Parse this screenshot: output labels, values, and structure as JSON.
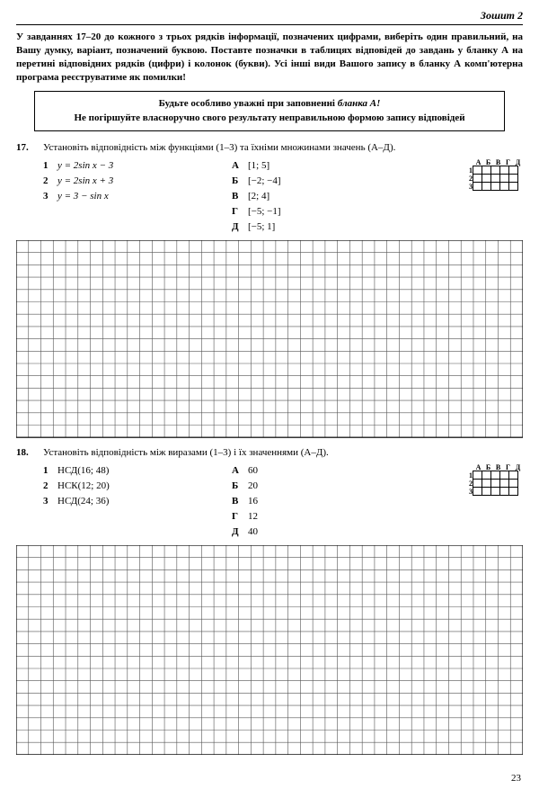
{
  "header": {
    "booklet": "Зошит 2"
  },
  "instructions": "У завданнях 17–20 до кожного з трьох рядків інформації, позначених цифрами, виберіть один правильний, на Вашу думку, варіант, позначений буквою. Поставте позначки в таблицях відповідей до завдань у бланку А на перетині відповідних рядків (цифри) і колонок (букви). Усі інші види Вашого запису в бланку А комп'ютерна програма реєструватиме як помилки!",
  "warning": {
    "line1_a": "Будьте особливо уважні при заповненні ",
    "line1_b": "бланка А!",
    "line2": "Не погіршуйте власноручно свого результату неправильною формою запису відповідей"
  },
  "answer_header": [
    "А",
    "Б",
    "В",
    "Г",
    "Д"
  ],
  "task17": {
    "num": "17.",
    "prompt": "Установіть відповідність між функціями (1–3) та їхніми множинами значень (А–Д).",
    "left": [
      {
        "n": "1",
        "txt": "y = 2sin x − 3"
      },
      {
        "n": "2",
        "txt": "y = 2sin x + 3"
      },
      {
        "n": "3",
        "txt": "y = 3 − sin x"
      }
    ],
    "right": [
      {
        "l": "А",
        "txt": "[1; 5]"
      },
      {
        "l": "Б",
        "txt": "[−2; −4]"
      },
      {
        "l": "В",
        "txt": "[2; 4]"
      },
      {
        "l": "Г",
        "txt": "[−5; −1]"
      },
      {
        "l": "Д",
        "txt": "[−5; 1]"
      }
    ],
    "grid": {
      "cols": 41,
      "rows": 16,
      "cell": 13.7,
      "stroke": "#555"
    }
  },
  "task18": {
    "num": "18.",
    "prompt": "Установіть відповідність між виразами (1–3) і їх значеннями (А–Д).",
    "left": [
      {
        "n": "1",
        "txt": "НСД(16; 48)"
      },
      {
        "n": "2",
        "txt": "НСК(12; 20)"
      },
      {
        "n": "3",
        "txt": "НСД(24; 36)"
      }
    ],
    "right": [
      {
        "l": "А",
        "txt": "60"
      },
      {
        "l": "Б",
        "txt": "20"
      },
      {
        "l": "В",
        "txt": "16"
      },
      {
        "l": "Г",
        "txt": "12"
      },
      {
        "l": "Д",
        "txt": "40"
      }
    ],
    "grid": {
      "cols": 41,
      "rows": 17,
      "cell": 13.7,
      "stroke": "#555"
    }
  },
  "page_number": "23"
}
